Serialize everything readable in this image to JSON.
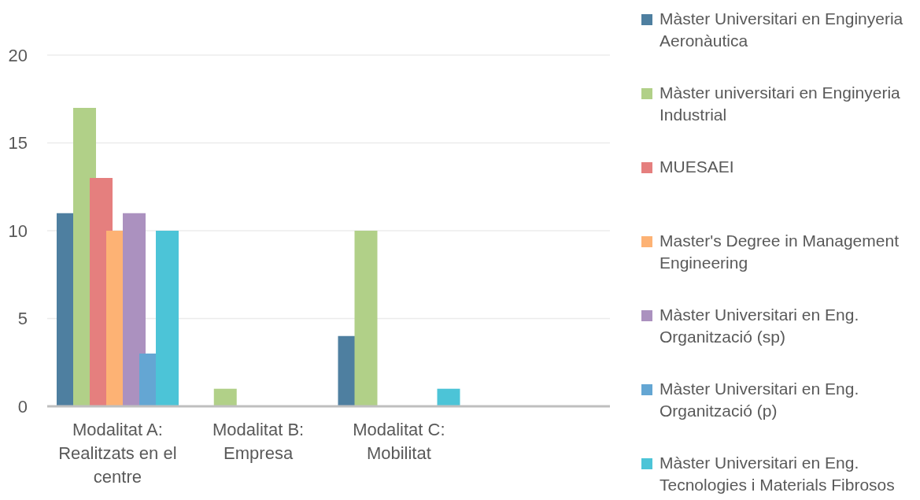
{
  "chart_data": {
    "type": "bar",
    "categories": [
      "Modalitat A: Realitzats en el centre",
      "Modalitat B: Empresa",
      "Modalitat C: Mobilitat",
      null
    ],
    "series": [
      {
        "name": "Màster Universitari en Enginyeria Aeronàutica",
        "color": "#4e7fa0",
        "values": [
          11,
          null,
          4,
          null
        ]
      },
      {
        "name": "Màster universitari en Enginyeria Industrial",
        "color": "#b1d088",
        "values": [
          17,
          1,
          10,
          null
        ]
      },
      {
        "name": "MUESAEI",
        "color": "#e57f7e",
        "values": [
          13,
          null,
          null,
          null
        ]
      },
      {
        "name": "Master's Degree in Management Engineering",
        "color": "#fdb274",
        "values": [
          10,
          null,
          null,
          null
        ]
      },
      {
        "name": "Màster Universitari en Eng. Organització (sp)",
        "color": "#ab91bf",
        "values": [
          11,
          null,
          null,
          null
        ]
      },
      {
        "name": "Màster Universitari en Eng. Organització (p)",
        "color": "#64a6d3",
        "values": [
          3,
          null,
          null,
          null
        ]
      },
      {
        "name": "Màster Universitari en Eng. Tecnologies i Materials Fibrosos",
        "color": "#4cc4d7",
        "values": [
          10,
          null,
          1,
          null
        ]
      }
    ],
    "ylim": [
      0,
      20
    ],
    "yticks": [
      0,
      5,
      10,
      15,
      20
    ],
    "grid": "y",
    "legend": "right"
  }
}
